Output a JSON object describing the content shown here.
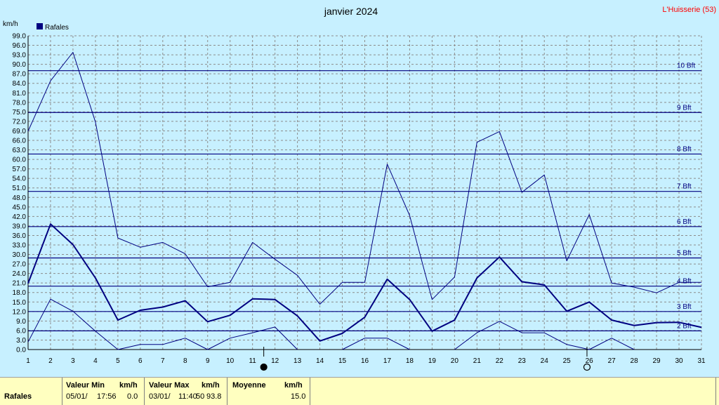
{
  "chart_data": {
    "type": "line",
    "title": "janvier 2024",
    "station": "L'Huisserie (53)",
    "ylabel": "km/h",
    "legend": "Rafales",
    "legend_position": "top-left",
    "grid": true,
    "ylim": [
      0,
      99
    ],
    "y_ticks": [
      "0.0",
      "3.0",
      "6.0",
      "9.0",
      "12.0",
      "15.0",
      "18.0",
      "21.0",
      "24.0",
      "27.0",
      "30.0",
      "33.0",
      "36.0",
      "39.0",
      "42.0",
      "45.0",
      "48.0",
      "51.0",
      "54.0",
      "57.0",
      "60.0",
      "63.0",
      "66.0",
      "69.0",
      "72.0",
      "75.0",
      "78.0",
      "81.0",
      "84.0",
      "87.0",
      "90.0",
      "93.0",
      "96.0",
      "99.0"
    ],
    "x": [
      1,
      2,
      3,
      4,
      5,
      6,
      7,
      8,
      9,
      10,
      11,
      12,
      13,
      14,
      15,
      16,
      17,
      18,
      19,
      20,
      21,
      22,
      23,
      24,
      25,
      26,
      27,
      28,
      29,
      30,
      31
    ],
    "x_labels": [
      "1",
      "2",
      "3",
      "4",
      "5",
      "6",
      "7",
      "8",
      "9",
      "10",
      "11",
      "12",
      "13",
      "14",
      "15",
      "16",
      "17",
      "18",
      "19",
      "20",
      "21",
      "22",
      "23",
      "24",
      "25",
      "26",
      "27",
      "28",
      "29",
      "30",
      "31"
    ],
    "series": [
      {
        "name": "max",
        "color": "#000080",
        "width": 1,
        "values": [
          68.9,
          84.8,
          93.8,
          71.8,
          35.2,
          32.3,
          33.8,
          30.2,
          19.8,
          21.2,
          33.8,
          28.5,
          23.4,
          14.3,
          21.2,
          21.2,
          58.5,
          42.3,
          15.8,
          22.9,
          65.4,
          68.8,
          49.6,
          55.1,
          28.0,
          42.6,
          21.0,
          19.7,
          17.9,
          21.2,
          21.2
        ]
      },
      {
        "name": "moyenne",
        "color": "#000080",
        "width": 2,
        "values": [
          20.9,
          39.6,
          33.1,
          22.6,
          9.3,
          12.4,
          13.4,
          15.4,
          8.8,
          10.8,
          16.0,
          15.8,
          10.6,
          2.7,
          5.1,
          10.2,
          22.2,
          15.8,
          5.8,
          9.3,
          22.6,
          29.2,
          21.4,
          20.4,
          12.1,
          15.0,
          9.3,
          7.6,
          8.5,
          8.6,
          7.0
        ]
      },
      {
        "name": "min",
        "color": "#000080",
        "width": 1,
        "values": [
          2.4,
          15.9,
          12.1,
          5.8,
          0.0,
          1.6,
          1.6,
          3.6,
          0.0,
          3.6,
          5.3,
          7.1,
          0.0,
          null,
          0.0,
          3.6,
          3.6,
          0.0,
          null,
          0.0,
          5.3,
          8.9,
          5.3,
          5.3,
          1.6,
          0.0,
          3.6,
          0.0,
          null,
          null,
          null
        ]
      }
    ],
    "beaufort": [
      {
        "label": "2 Bft",
        "value": 5.9
      },
      {
        "label": "3 Bft",
        "value": 12.0
      },
      {
        "label": "4 Bft",
        "value": 20.0
      },
      {
        "label": "5 Bft",
        "value": 28.9
      },
      {
        "label": "6 Bft",
        "value": 38.8
      },
      {
        "label": "7 Bft",
        "value": 49.9
      },
      {
        "label": "8 Bft",
        "value": 61.7
      },
      {
        "label": "9 Bft",
        "value": 74.8
      },
      {
        "label": "10 Bft",
        "value": 88.0
      }
    ],
    "moon_phases": [
      {
        "day": 11.5,
        "type": "new"
      },
      {
        "day": 25.9,
        "type": "full"
      }
    ]
  },
  "stats": {
    "row_label": "Rafales",
    "min_header": "Valeur Min",
    "min_unit": "km/h",
    "min_date": "05/01/",
    "min_time": "17:56",
    "min_value": "0.0",
    "max_header": "Valeur Max",
    "max_unit": "km/h",
    "max_date": "03/01/",
    "max_time": "11:40",
    "max_value_prefix": "50",
    "max_value": "93.8",
    "avg_header": "Moyenne",
    "avg_unit": "km/h",
    "avg_value": "15.0"
  }
}
